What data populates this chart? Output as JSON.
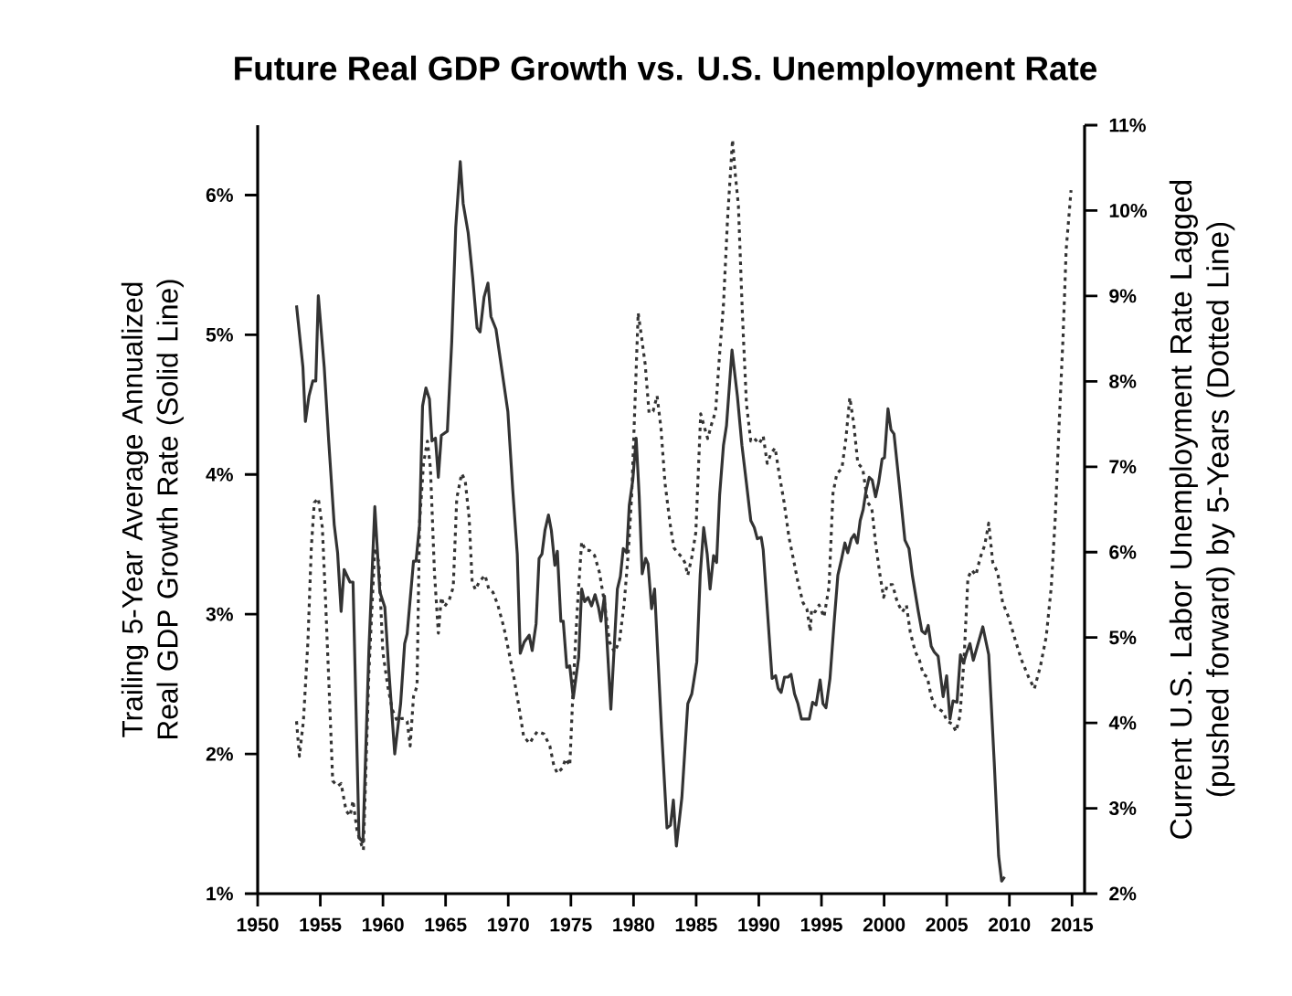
{
  "chart_data": {
    "type": "line",
    "title": "Future Real GDP Growth vs. U.S. Unemployment Rate",
    "ylabel": "Trailing 5-Year Average Annualized Real GDP Growth Rate (Solid Line)",
    "y2label": "Current U.S. Labor Unemployment Rate Lagged (pushed forward) by 5-Years (Dotted Line)",
    "xlim": [
      1950,
      2016
    ],
    "xticks": [
      1950,
      1955,
      1960,
      1965,
      1970,
      1975,
      1980,
      1985,
      1990,
      1995,
      2000,
      2005,
      2010,
      2015
    ],
    "ylim": [
      1,
      6.5
    ],
    "yticks": [
      {
        "value": 1,
        "label": "1%"
      },
      {
        "value": 2,
        "label": "2%"
      },
      {
        "value": 3,
        "label": "3%"
      },
      {
        "value": 4,
        "label": "4%"
      },
      {
        "value": 5,
        "label": "5%"
      },
      {
        "value": 6,
        "label": "6%"
      }
    ],
    "y2lim": [
      2,
      11
    ],
    "y2ticks": [
      {
        "value": 2,
        "label": "2%"
      },
      {
        "value": 3,
        "label": "3%"
      },
      {
        "value": 4,
        "label": "4%"
      },
      {
        "value": 5,
        "label": "5%"
      },
      {
        "value": 6,
        "label": "6%"
      },
      {
        "value": 7,
        "label": "7%"
      },
      {
        "value": 8,
        "label": "8%"
      },
      {
        "value": 9,
        "label": "9%"
      },
      {
        "value": 10,
        "label": "10%"
      },
      {
        "value": 11,
        "label": "11%"
      }
    ],
    "series": [
      {
        "color": "#333333",
        "line_style": "solid",
        "x": [
          1953.1,
          1953.61,
          1953.81,
          1954.09,
          1954.4,
          1954.64,
          1954.84,
          1955.31,
          1955.67,
          1956.11,
          1956.38,
          1956.66,
          1956.9,
          1957.37,
          1957.61,
          1958.09,
          1958.4,
          1958.88,
          1959.35,
          1959.75,
          1960.15,
          1960.46,
          1960.94,
          1961.41,
          1961.73,
          1961.93,
          1962.44,
          1962.64,
          1962.92,
          1963.16,
          1963.43,
          1963.71,
          1963.91,
          1964.19,
          1964.42,
          1964.66,
          1965.14,
          1965.49,
          1965.81,
          1966.17,
          1966.4,
          1966.8,
          1967.16,
          1967.51,
          1967.75,
          1968.07,
          1968.38,
          1968.62,
          1969.02,
          1969.97,
          1970.36,
          1970.72,
          1970.96,
          1971.27,
          1971.67,
          1971.91,
          1972.22,
          1972.46,
          1972.69,
          1972.93,
          1973.21,
          1973.44,
          1973.72,
          1973.92,
          1974.2,
          1974.39,
          1974.67,
          1974.91,
          1975.19,
          1975.62,
          1975.86,
          1976.1,
          1976.37,
          1976.65,
          1976.93,
          1977.2,
          1977.4,
          1977.68,
          1978.19,
          1978.71,
          1978.95,
          1979.18,
          1979.46,
          1979.66,
          1979.94,
          1980.21,
          1980.45,
          1980.69,
          1980.97,
          1981.16,
          1981.44,
          1981.68,
          1982.23,
          1982.67,
          1982.95,
          1983.18,
          1983.42,
          1983.86,
          1984.33,
          1984.65,
          1985.05,
          1985.32,
          1985.6,
          1985.88,
          1986.11,
          1986.39,
          1986.63,
          1986.87,
          1987.18,
          1987.42,
          1987.86,
          1988.29,
          1988.65,
          1989.01,
          1989.36,
          1989.64,
          1989.88,
          1990.19,
          1990.35,
          1991.06,
          1991.34,
          1991.54,
          1991.78,
          1992.05,
          1992.33,
          1992.57,
          1992.85,
          1993.12,
          1993.4,
          1994.03,
          1994.29,
          1994.57,
          1994.89,
          1995.12,
          1995.36,
          1995.68,
          1996.0,
          1996.31,
          1996.59,
          1996.87,
          1997.1,
          1997.38,
          1997.62,
          1997.86,
          1998.09,
          1998.33,
          1998.57,
          1998.81,
          1999.05,
          1999.32,
          1999.56,
          1999.84,
          2000.03,
          2000.31,
          2000.55,
          2000.79,
          2001.22,
          2001.66,
          2001.98,
          2002.25,
          2002.73,
          2003.01,
          2003.28,
          2003.52,
          2003.76,
          2004.0,
          2004.31,
          2004.71,
          2004.99,
          2005.26,
          2005.5,
          2005.82,
          2006.09,
          2006.33,
          2006.57,
          2006.85,
          2007.12,
          2007.88,
          2008.35,
          2008.79,
          2009.14,
          2009.38,
          2009.62
        ],
        "values": [
          5.21,
          4.77,
          4.38,
          4.56,
          4.67,
          4.67,
          5.28,
          4.77,
          4.24,
          3.64,
          3.44,
          3.02,
          3.32,
          3.23,
          3.23,
          1.4,
          1.37,
          2.75,
          3.77,
          3.16,
          3.05,
          2.61,
          2.0,
          2.36,
          2.79,
          2.86,
          3.38,
          3.38,
          3.64,
          4.49,
          4.62,
          4.54,
          4.24,
          4.26,
          3.98,
          4.28,
          4.31,
          4.95,
          5.77,
          6.24,
          5.94,
          5.73,
          5.41,
          5.05,
          5.02,
          5.27,
          5.37,
          5.13,
          5.04,
          4.45,
          3.89,
          3.43,
          2.72,
          2.8,
          2.85,
          2.74,
          2.93,
          3.4,
          3.43,
          3.6,
          3.71,
          3.6,
          3.35,
          3.45,
          2.95,
          2.95,
          2.62,
          2.63,
          2.4,
          2.69,
          3.18,
          3.09,
          3.12,
          3.06,
          3.14,
          3.05,
          2.95,
          3.13,
          2.32,
          3.18,
          3.27,
          3.47,
          3.44,
          3.78,
          3.96,
          4.26,
          3.85,
          3.29,
          3.4,
          3.36,
          3.04,
          3.18,
          2.18,
          1.47,
          1.49,
          1.67,
          1.34,
          1.69,
          2.36,
          2.43,
          2.66,
          3.28,
          3.62,
          3.43,
          3.18,
          3.42,
          3.37,
          3.85,
          4.21,
          4.35,
          4.89,
          4.56,
          4.21,
          3.94,
          3.67,
          3.62,
          3.54,
          3.55,
          3.46,
          2.54,
          2.56,
          2.47,
          2.44,
          2.55,
          2.55,
          2.57,
          2.43,
          2.36,
          2.25,
          2.25,
          2.37,
          2.35,
          2.53,
          2.36,
          2.33,
          2.54,
          2.93,
          3.28,
          3.39,
          3.51,
          3.44,
          3.54,
          3.57,
          3.51,
          3.67,
          3.75,
          3.89,
          3.98,
          3.96,
          3.84,
          3.94,
          4.11,
          4.12,
          4.47,
          4.32,
          4.29,
          3.92,
          3.53,
          3.47,
          3.28,
          3.02,
          2.88,
          2.86,
          2.92,
          2.77,
          2.73,
          2.7,
          2.41,
          2.56,
          2.25,
          2.38,
          2.37,
          2.71,
          2.65,
          2.72,
          2.79,
          2.67,
          2.91,
          2.71,
          1.94,
          1.27,
          1.09,
          1.12
        ]
      },
      {
        "color": "#333333",
        "line_style": "dotted",
        "axis": "y2",
        "x": [
          1953.1,
          1953.33,
          1953.65,
          1954.01,
          1954.28,
          1954.52,
          1954.84,
          1955.16,
          1955.39,
          1955.71,
          1955.99,
          1956.38,
          1956.66,
          1957.06,
          1957.37,
          1957.61,
          1957.93,
          1958.17,
          1958.44,
          1958.88,
          1959.35,
          1959.67,
          1959.99,
          1960.38,
          1960.74,
          1961.14,
          1961.45,
          1961.73,
          1961.93,
          1962.17,
          1962.44,
          1962.72,
          1962.92,
          1963.24,
          1963.55,
          1963.79,
          1964.11,
          1964.42,
          1964.66,
          1964.9,
          1965.29,
          1965.61,
          1965.89,
          1966.28,
          1966.56,
          1966.88,
          1967.12,
          1967.39,
          1967.67,
          1968.15,
          1968.46,
          1968.78,
          1969.17,
          1969.65,
          1970.05,
          1970.44,
          1970.84,
          1971.23,
          1971.71,
          1972.03,
          1972.33,
          1972.85,
          1973.32,
          1973.64,
          1973.92,
          1974.31,
          1974.59,
          1974.91,
          1975.22,
          1975.54,
          1975.86,
          1976.17,
          1976.49,
          1976.89,
          1977.28,
          1977.68,
          1978.08,
          1978.47,
          1978.87,
          1979.26,
          1979.58,
          1979.86,
          1980.14,
          1980.37,
          1980.61,
          1980.93,
          1981.24,
          1981.56,
          1981.88,
          1982.19,
          1982.51,
          1982.91,
          1983.22,
          1983.54,
          1983.86,
          1984.09,
          1984.33,
          1984.65,
          1984.97,
          1985.36,
          1985.68,
          1985.92,
          1986.23,
          1986.55,
          1986.87,
          1987.18,
          1987.5,
          1987.9,
          1988.13,
          1988.37,
          1988.69,
          1989.01,
          1989.36,
          1989.64,
          1990.03,
          1990.35,
          1990.67,
          1990.99,
          1991.3,
          1991.62,
          1992.02,
          1992.41,
          1992.81,
          1993.12,
          1993.52,
          1993.84,
          1994.11,
          1994.21,
          1994.49,
          1994.81,
          1995.2,
          1995.6,
          1995.92,
          1996.23,
          1996.63,
          1996.95,
          1997.26,
          1997.58,
          1997.9,
          1998.29,
          1998.69,
          1999.01,
          1999.32,
          1999.64,
          1999.96,
          2000.27,
          2000.67,
          2001.06,
          2001.46,
          2001.78,
          2002.09,
          2002.49,
          2002.81,
          2003.12,
          2003.44,
          2003.76,
          2004.07,
          2004.39,
          2004.71,
          2005.02,
          2005.42,
          2005.74,
          2006.05,
          2006.37,
          2006.69,
          2007.0,
          2007.32,
          2007.68,
          2008.03,
          2008.35,
          2008.67,
          2009.06,
          2009.46,
          2009.93,
          2010.45,
          2010.96,
          2011.52,
          2011.99,
          2012.47,
          2012.94,
          2013.34,
          2013.66,
          2013.97,
          2014.29,
          2014.53,
          2014.76,
          2014.92
        ],
        "values": [
          4.02,
          3.61,
          4.02,
          4.95,
          6.05,
          6.58,
          6.63,
          6.29,
          5.53,
          4.37,
          3.32,
          3.26,
          3.29,
          2.97,
          2.91,
          3.09,
          2.74,
          2.62,
          2.51,
          4.6,
          6.05,
          5.88,
          4.83,
          4.43,
          4.16,
          4.02,
          4.05,
          4.05,
          4.02,
          3.73,
          4.31,
          4.43,
          6.34,
          7.04,
          7.3,
          6.98,
          5.76,
          5.05,
          5.47,
          5.36,
          5.44,
          5.59,
          6.63,
          6.92,
          6.84,
          6.4,
          5.65,
          5.56,
          5.65,
          5.73,
          5.56,
          5.53,
          5.38,
          5.12,
          4.83,
          4.54,
          4.2,
          3.84,
          3.76,
          3.84,
          3.9,
          3.87,
          3.73,
          3.5,
          3.41,
          3.47,
          3.58,
          3.5,
          4.54,
          5.41,
          6.12,
          6.02,
          6.02,
          5.96,
          5.76,
          5.41,
          4.95,
          4.83,
          4.95,
          5.41,
          5.99,
          6.69,
          7.85,
          8.8,
          8.55,
          8.2,
          7.63,
          7.65,
          7.83,
          7.45,
          6.81,
          6.34,
          6.05,
          5.99,
          5.94,
          5.88,
          5.73,
          5.94,
          6.23,
          7.62,
          7.45,
          7.33,
          7.5,
          7.65,
          8.32,
          8.9,
          9.89,
          10.83,
          10.41,
          10.06,
          8.78,
          7.74,
          7.3,
          7.33,
          7.27,
          7.36,
          7.04,
          7.16,
          7.22,
          6.92,
          6.58,
          6.17,
          5.88,
          5.65,
          5.41,
          5.33,
          5.07,
          5.33,
          5.3,
          5.38,
          5.24,
          5.59,
          6.69,
          6.92,
          6.98,
          7.33,
          7.81,
          7.5,
          7.04,
          6.98,
          6.58,
          6.52,
          6.11,
          5.76,
          5.47,
          5.62,
          5.62,
          5.41,
          5.3,
          5.38,
          5.06,
          4.83,
          4.74,
          4.57,
          4.54,
          4.31,
          4.19,
          4.16,
          4.13,
          4.02,
          3.99,
          3.9,
          4.08,
          4.72,
          5.7,
          5.79,
          5.73,
          5.94,
          6.08,
          6.34,
          5.88,
          5.76,
          5.41,
          5.24,
          4.98,
          4.74,
          4.54,
          4.4,
          4.66,
          5.01,
          5.59,
          6.4,
          7.5,
          8.55,
          9.54,
          9.95,
          10.24
        ]
      }
    ]
  }
}
